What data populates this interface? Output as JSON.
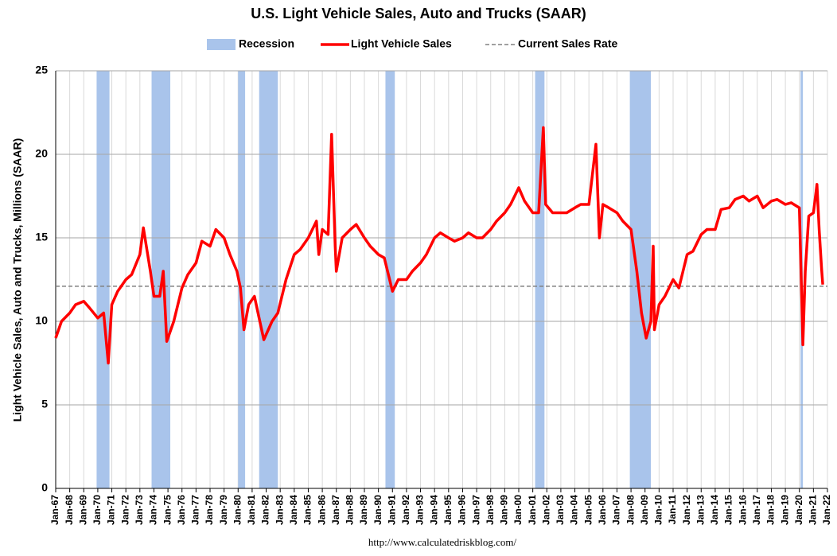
{
  "chart_data": {
    "type": "line",
    "title": "U.S. Light Vehicle Sales, Auto and Trucks (SAAR)",
    "y_label": "Light Vehicle Sales, Auto and Trucks, Millions (SAAR)",
    "source": "http://www.calculatedriskblog.com/",
    "x": [
      "1967-01",
      "1967-06",
      "1968-01",
      "1968-06",
      "1969-01",
      "1969-06",
      "1970-01",
      "1970-06",
      "1970-10",
      "1971-01",
      "1971-06",
      "1972-01",
      "1972-06",
      "1973-01",
      "1973-04",
      "1973-10",
      "1974-01",
      "1974-06",
      "1974-09",
      "1974-12",
      "1975-06",
      "1976-01",
      "1976-06",
      "1977-01",
      "1977-06",
      "1978-01",
      "1978-06",
      "1979-01",
      "1979-06",
      "1979-12",
      "1980-03",
      "1980-06",
      "1980-10",
      "1981-03",
      "1981-06",
      "1981-11",
      "1982-06",
      "1982-11",
      "1983-06",
      "1984-01",
      "1984-06",
      "1985-01",
      "1985-08",
      "1985-10",
      "1986-01",
      "1986-06",
      "1986-09",
      "1986-12",
      "1987-01",
      "1987-06",
      "1988-01",
      "1988-06",
      "1989-01",
      "1989-06",
      "1990-01",
      "1990-06",
      "1991-01",
      "1991-06",
      "1992-01",
      "1992-06",
      "1993-01",
      "1993-06",
      "1994-01",
      "1994-06",
      "1995-01",
      "1995-06",
      "1996-01",
      "1996-06",
      "1997-01",
      "1997-06",
      "1998-01",
      "1998-06",
      "1999-01",
      "1999-06",
      "2000-01",
      "2000-06",
      "2001-01",
      "2001-06",
      "2001-10",
      "2001-12",
      "2002-06",
      "2003-01",
      "2003-06",
      "2004-01",
      "2004-06",
      "2005-01",
      "2005-07",
      "2005-10",
      "2006-01",
      "2006-06",
      "2007-01",
      "2007-06",
      "2008-01",
      "2008-06",
      "2008-10",
      "2009-02",
      "2009-06",
      "2009-08",
      "2009-09",
      "2010-01",
      "2010-06",
      "2011-01",
      "2011-06",
      "2012-01",
      "2012-06",
      "2013-01",
      "2013-06",
      "2014-01",
      "2014-06",
      "2015-01",
      "2015-06",
      "2016-01",
      "2016-06",
      "2017-01",
      "2017-06",
      "2018-01",
      "2018-06",
      "2019-01",
      "2019-06",
      "2020-01",
      "2020-03",
      "2020-04",
      "2020-06",
      "2020-09",
      "2021-01",
      "2021-04",
      "2021-06",
      "2021-08",
      "2021-09"
    ],
    "series": [
      {
        "name": "Light Vehicle Sales",
        "color": "#ff0000",
        "values": [
          9.0,
          10.0,
          10.5,
          11.0,
          11.2,
          10.8,
          10.2,
          10.5,
          7.5,
          11.0,
          11.8,
          12.5,
          12.8,
          14.0,
          15.6,
          13.0,
          11.5,
          11.5,
          13.0,
          8.8,
          10.0,
          12.0,
          12.8,
          13.5,
          14.8,
          14.5,
          15.5,
          15.0,
          14.0,
          13.0,
          12.0,
          9.5,
          11.0,
          11.5,
          10.5,
          8.9,
          10.0,
          10.5,
          12.5,
          14.0,
          14.3,
          15.0,
          16.0,
          14.0,
          15.5,
          15.2,
          21.2,
          14.5,
          13.0,
          15.0,
          15.5,
          15.8,
          15.0,
          14.5,
          14.0,
          13.8,
          11.8,
          12.5,
          12.5,
          13.0,
          13.5,
          14.0,
          15.0,
          15.3,
          15.0,
          14.8,
          15.0,
          15.3,
          15.0,
          15.0,
          15.5,
          16.0,
          16.5,
          17.0,
          18.0,
          17.2,
          16.5,
          16.5,
          21.6,
          17.0,
          16.5,
          16.5,
          16.5,
          16.8,
          17.0,
          17.0,
          20.6,
          15.0,
          17.0,
          16.8,
          16.5,
          16.0,
          15.5,
          13.0,
          10.5,
          9.0,
          10.0,
          14.5,
          9.5,
          11.0,
          11.5,
          12.5,
          12.0,
          14.0,
          14.2,
          15.2,
          15.5,
          15.5,
          16.7,
          16.8,
          17.3,
          17.5,
          17.2,
          17.5,
          16.8,
          17.2,
          17.3,
          17.0,
          17.1,
          16.8,
          11.3,
          8.6,
          13.0,
          16.3,
          16.5,
          18.2,
          15.4,
          13.1,
          12.2
        ]
      }
    ],
    "recessions": {
      "name": "Recession",
      "color": "#a9c4eb",
      "periods": [
        [
          "1969-12",
          "1970-11"
        ],
        [
          "1973-11",
          "1975-03"
        ],
        [
          "1980-01",
          "1980-07"
        ],
        [
          "1981-07",
          "1982-11"
        ],
        [
          "1990-07",
          "1991-03"
        ],
        [
          "2001-03",
          "2001-11"
        ],
        [
          "2007-12",
          "2009-06"
        ],
        [
          "2020-02",
          "2020-04"
        ]
      ]
    },
    "reference_line": {
      "name": "Current Sales Rate",
      "value": 12.1,
      "color": "#808080"
    },
    "xlim": [
      "1967-01",
      "2022-01"
    ],
    "ylim": [
      0,
      25
    ],
    "yticks": [
      0,
      5,
      10,
      15,
      20,
      25
    ],
    "grid": true,
    "xticks": [
      {
        "value": "1967-01",
        "label": "Jan-67"
      },
      {
        "value": "1968-01",
        "label": "Jan-68"
      },
      {
        "value": "1969-01",
        "label": "Jan-69"
      },
      {
        "value": "1970-01",
        "label": "Jan-70"
      },
      {
        "value": "1971-01",
        "label": "Jan-71"
      },
      {
        "value": "1972-01",
        "label": "Jan-72"
      },
      {
        "value": "1973-01",
        "label": "Jan-73"
      },
      {
        "value": "1974-01",
        "label": "Jan-74"
      },
      {
        "value": "1975-01",
        "label": "Jan-75"
      },
      {
        "value": "1976-01",
        "label": "Jan-76"
      },
      {
        "value": "1977-01",
        "label": "Jan-77"
      },
      {
        "value": "1978-01",
        "label": "Jan-78"
      },
      {
        "value": "1979-01",
        "label": "Jan-79"
      },
      {
        "value": "1980-01",
        "label": "Jan-80"
      },
      {
        "value": "1981-01",
        "label": "Jan-81"
      },
      {
        "value": "1982-01",
        "label": "Jan-82"
      },
      {
        "value": "1983-01",
        "label": "Jan-83"
      },
      {
        "value": "1984-01",
        "label": "Jan-84"
      },
      {
        "value": "1985-01",
        "label": "Jan-85"
      },
      {
        "value": "1986-01",
        "label": "Jan-86"
      },
      {
        "value": "1987-01",
        "label": "Jan-87"
      },
      {
        "value": "1988-01",
        "label": "Jan-88"
      },
      {
        "value": "1989-01",
        "label": "Jan-89"
      },
      {
        "value": "1990-01",
        "label": "Jan-90"
      },
      {
        "value": "1991-01",
        "label": "Jan-91"
      },
      {
        "value": "1992-01",
        "label": "Jan-92"
      },
      {
        "value": "1993-01",
        "label": "Jan-93"
      },
      {
        "value": "1994-01",
        "label": "Jan-94"
      },
      {
        "value": "1995-01",
        "label": "Jan-95"
      },
      {
        "value": "1996-01",
        "label": "Jan-96"
      },
      {
        "value": "1997-01",
        "label": "Jan-97"
      },
      {
        "value": "1998-01",
        "label": "Jan-98"
      },
      {
        "value": "1999-01",
        "label": "Jan-99"
      },
      {
        "value": "2000-01",
        "label": "Jan-00"
      },
      {
        "value": "2001-01",
        "label": "Jan-01"
      },
      {
        "value": "2002-01",
        "label": "Jan-02"
      },
      {
        "value": "2003-01",
        "label": "Jan-03"
      },
      {
        "value": "2004-01",
        "label": "Jan-04"
      },
      {
        "value": "2005-01",
        "label": "Jan-05"
      },
      {
        "value": "2006-01",
        "label": "Jan-06"
      },
      {
        "value": "2007-01",
        "label": "Jan-07"
      },
      {
        "value": "2008-01",
        "label": "Jan-08"
      },
      {
        "value": "2009-01",
        "label": "Jan-09"
      },
      {
        "value": "2010-01",
        "label": "Jan-10"
      },
      {
        "value": "2011-01",
        "label": "Jan-11"
      },
      {
        "value": "2012-01",
        "label": "Jan-12"
      },
      {
        "value": "2013-01",
        "label": "Jan-13"
      },
      {
        "value": "2014-01",
        "label": "Jan-14"
      },
      {
        "value": "2015-01",
        "label": "Jan-15"
      },
      {
        "value": "2016-01",
        "label": "Jan-16"
      },
      {
        "value": "2017-01",
        "label": "Jan-17"
      },
      {
        "value": "2018-01",
        "label": "Jan-18"
      },
      {
        "value": "2019-01",
        "label": "Jan-19"
      },
      {
        "value": "2020-01",
        "label": "Jan-20"
      },
      {
        "value": "2021-01",
        "label": "Jan-21"
      },
      {
        "value": "2022-01",
        "label": "Jan-22"
      }
    ]
  }
}
